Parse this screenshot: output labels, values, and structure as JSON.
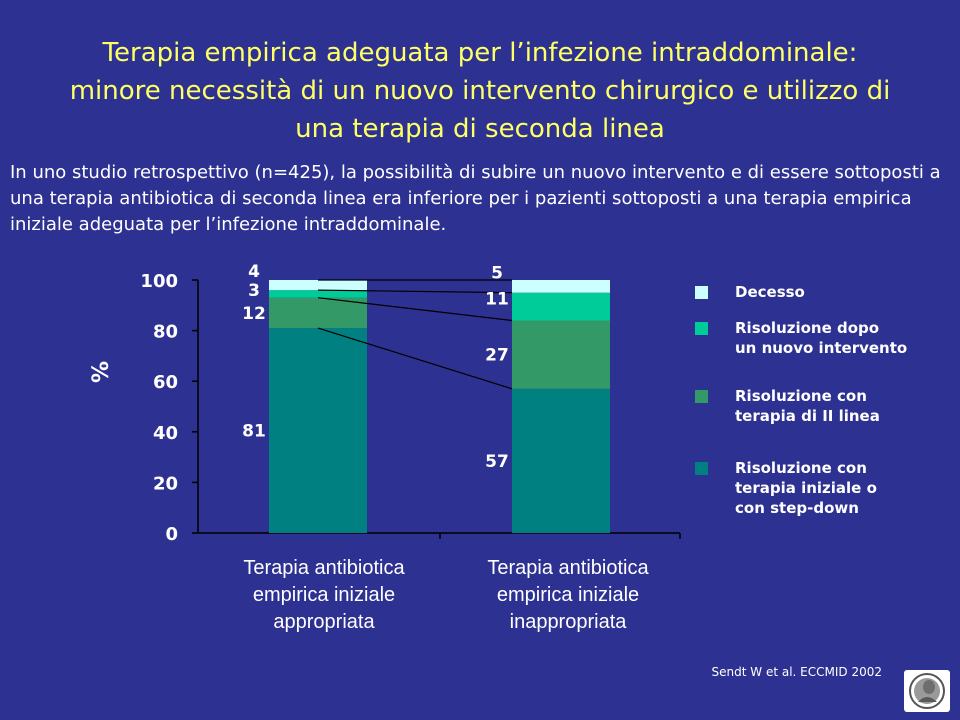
{
  "title": {
    "lines": [
      "Terapia empirica adeguata per l’infezione intraddominale:",
      "minore necessità di un nuovo intervento chirurgico e utilizzo di",
      "una terapia di seconda linea"
    ]
  },
  "intro": "In uno studio retrospettivo (n=425), la possibilità di subire un nuovo intervento e di essere sottoposti a una terapia antibiotica di seconda linea era inferiore per i pazienti sottoposti a una terapia empirica iniziale adeguata per l’infezione intraddominale.",
  "chart_data": {
    "type": "bar",
    "stacked": true,
    "ylabel": "%",
    "ylim": [
      0,
      100
    ],
    "yticks": [
      0,
      20,
      40,
      60,
      80,
      100
    ],
    "categories": [
      [
        "Terapia antibiotica",
        "empirica iniziale",
        "appropriata"
      ],
      [
        "Terapia antibiotica",
        "empirica iniziale",
        "inappropriata"
      ]
    ],
    "series": [
      {
        "name": [
          "Risoluzione con",
          "terapia iniziale o",
          "con step-down"
        ],
        "color": "#008080",
        "values": [
          81,
          57
        ]
      },
      {
        "name": [
          "Risoluzione con",
          "terapia di II linea"
        ],
        "color": "#339966",
        "values": [
          12,
          27
        ]
      },
      {
        "name": [
          "Risoluzione dopo",
          "un nuovo intervento"
        ],
        "color": "#00cc99",
        "values": [
          3,
          11
        ]
      },
      {
        "name": [
          "Decesso"
        ],
        "color": "#ccffff",
        "values": [
          4,
          5
        ]
      }
    ],
    "legend_order": [
      3,
      2,
      1,
      0
    ],
    "legend_position": "right",
    "grid": false
  },
  "citation": "Sendt W et al. ECCMID 2002",
  "colors": {
    "background": "#2d3191",
    "title": "#ffff66",
    "text": "#ffffff"
  }
}
